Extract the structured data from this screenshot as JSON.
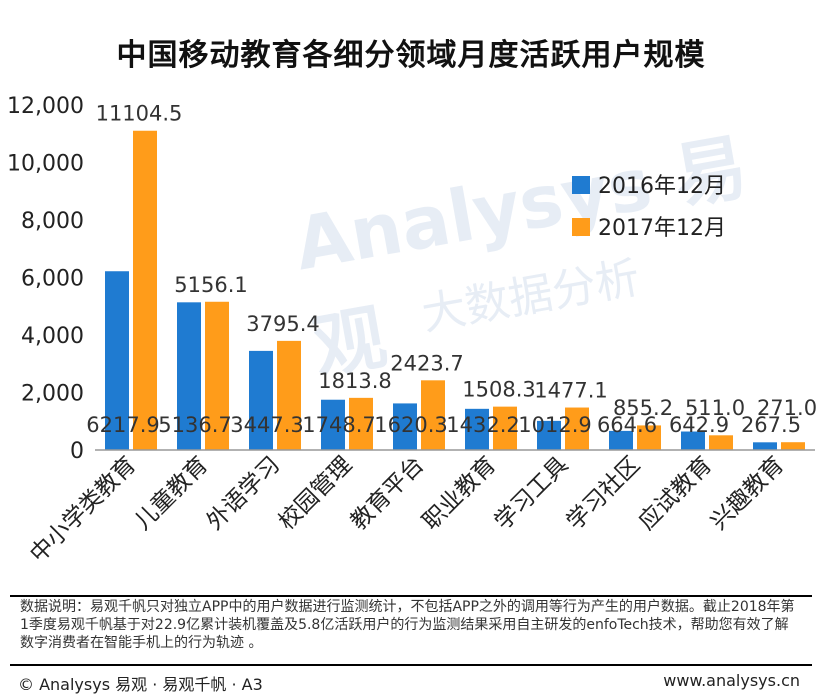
{
  "title": "中国移动教育各细分领域月度活跃用户规模",
  "chart_data": {
    "type": "bar",
    "categories": [
      "中小学类教育",
      "儿童教育",
      "外语学习",
      "校园管理",
      "教育平台",
      "职业教育",
      "学习工具",
      "学习社区",
      "应试教育",
      "兴趣教育"
    ],
    "series": [
      {
        "name": "2016年12月",
        "color": "#1f7bd1",
        "values": [
          6217.9,
          5136.7,
          3447.3,
          1748.7,
          1620.3,
          1432.2,
          1012.9,
          664.6,
          642.9,
          267.5
        ]
      },
      {
        "name": "2017年12月",
        "color": "#ff9c1a",
        "values": [
          11104.5,
          5156.1,
          3795.4,
          1813.8,
          2423.7,
          1508.3,
          1477.1,
          855.2,
          511.0,
          271.0
        ]
      }
    ],
    "ylim": [
      0,
      12000
    ],
    "yticks": [
      "0",
      "2,000",
      "4,000",
      "6,000",
      "8,000",
      "10,000",
      "12,000"
    ],
    "value_labels": {
      "s2016": [
        "6217.9",
        "5136.7",
        "3447.3",
        "1748.7",
        "1620.3",
        "1432.2",
        "1012.9",
        "664.6",
        "642.9",
        "267.5"
      ],
      "s2017": [
        "11104.5",
        "5156.1",
        "3795.4",
        "1813.8",
        "2423.7",
        "1508.3",
        "1477.1",
        "855.2",
        "511.0",
        "271.0"
      ]
    },
    "legend_position": "right",
    "grid": false
  },
  "watermark": "Analysys 易观",
  "watermark_sub": "大数据分析",
  "note": "数据说明：易观千帆只对独立APP中的用户数据进行监测统计，不包括APP之外的调用等行为产生的用户数据。截止2018年第1季度易观千帆基于对22.9亿累计装机覆盖及5.8亿活跃用户的行为监测结果采用自主研发的enfoTech技术，帮助您有效了解数字消费者在智能手机上的行为轨迹 。",
  "footer": {
    "left": "© Analysys 易观 · 易观千帆 · A3",
    "right": "www.analysys.cn"
  }
}
